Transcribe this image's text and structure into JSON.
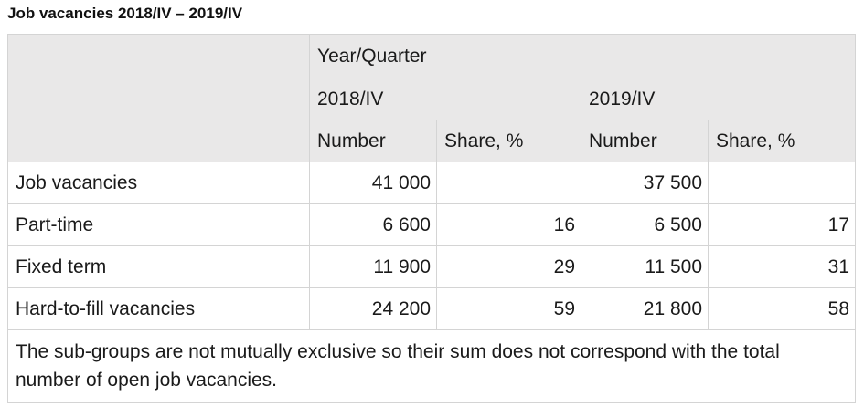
{
  "caption": "Job vacancies 2018/IV – 2019/IV",
  "table": {
    "header": {
      "dimension_label": "Year/Quarter",
      "periods": [
        "2018/IV",
        "2019/IV"
      ],
      "measures": [
        "Number",
        "Share, %",
        "Number",
        "Share, %"
      ]
    },
    "rows": [
      {
        "label": "Job vacancies",
        "values": [
          "41 000",
          "",
          "37 500",
          ""
        ]
      },
      {
        "label": "Part-time",
        "values": [
          "6 600",
          "16",
          "6 500",
          "17"
        ]
      },
      {
        "label": "Fixed term",
        "values": [
          "11 900",
          "29",
          "11 500",
          "31"
        ]
      },
      {
        "label": "Hard-to-fill vacancies",
        "values": [
          "24 200",
          "59",
          "21 800",
          "58"
        ]
      }
    ],
    "footnote": "The sub-groups are not mutually exclusive so their sum does not correspond with the total number of open job vacancies."
  }
}
